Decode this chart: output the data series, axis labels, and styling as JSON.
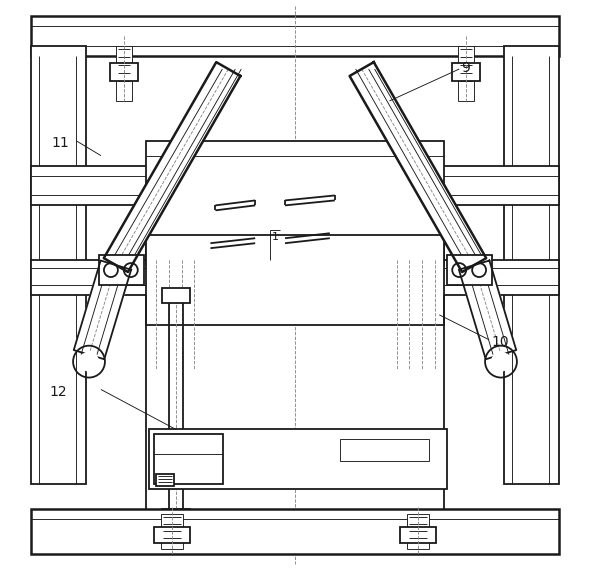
{
  "bg_color": "#ffffff",
  "line_color": "#1a1a1a",
  "lw_main": 1.3,
  "lw_thin": 0.65,
  "lw_thick": 1.8,
  "fig_width": 5.91,
  "fig_height": 5.69
}
